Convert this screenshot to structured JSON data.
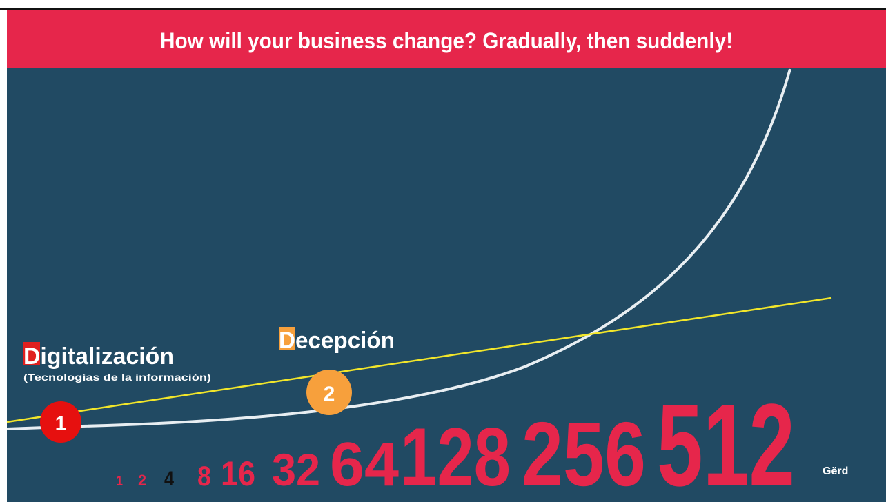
{
  "title": "How will your business change? Gradually, then suddenly!",
  "sequence": [
    1,
    2,
    4,
    8,
    16,
    32,
    64,
    128,
    256,
    512
  ],
  "labels": {
    "first": "Digitalización",
    "first_sub": "(Tecnologías de la información)",
    "second": "Decepción"
  },
  "badges": [
    "1",
    "2"
  ],
  "logo": "Gërd"
}
